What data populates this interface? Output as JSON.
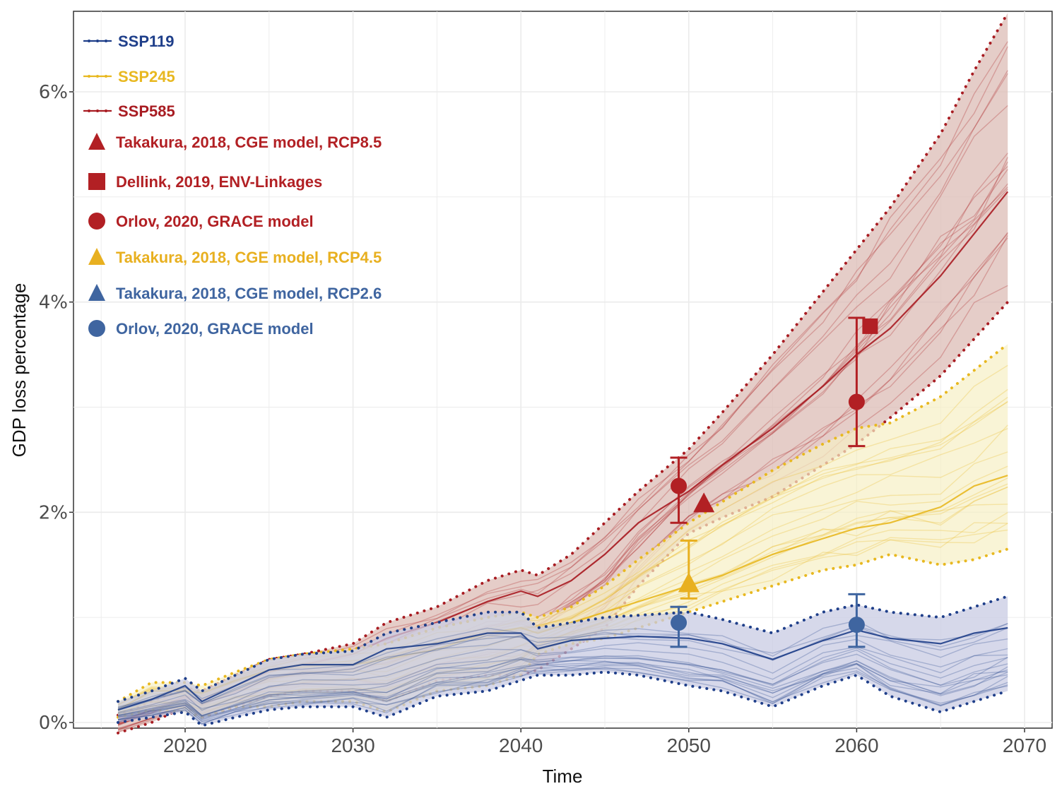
{
  "chart_data": {
    "type": "line",
    "title": "",
    "xlabel": "Time",
    "ylabel": "GDP  loss  percentage",
    "xlim": [
      2013,
      2071
    ],
    "ylim": [
      -0.05,
      6.8
    ],
    "grid": true,
    "legend_position": "top-left",
    "x_ticks": [
      2020,
      2030,
      2040,
      2050,
      2060,
      2070
    ],
    "x_tick_labels": [
      "2020",
      "2030",
      "2040",
      "2050",
      "2060",
      "2070"
    ],
    "y_ticks": [
      0,
      2,
      4,
      6
    ],
    "y_tick_labels": [
      "0%",
      "2%",
      "4%",
      "6%"
    ],
    "colors": {
      "ssp119": "#1f3f8a",
      "ssp245": "#e8b820",
      "ssp585": "#a81c22",
      "ssp119_fill": "#c8cbe3",
      "ssp245_fill": "#f7efc5",
      "ssp585_fill": "#dcbcb6",
      "orlov_blue": "#3f65a0",
      "takakura_blue": "#3f65a0",
      "takakura_yellow": "#e8b020",
      "red_marker": "#b22024"
    },
    "x": [
      2016,
      2018,
      2020,
      2021,
      2023,
      2025,
      2027,
      2030,
      2032,
      2035,
      2038,
      2040,
      2041,
      2043,
      2045,
      2047,
      2050,
      2052,
      2055,
      2058,
      2060,
      2062,
      2065,
      2067,
      2069
    ],
    "series": [
      {
        "name": "SSP119",
        "color_key": "ssp119",
        "median": [
          0.12,
          0.22,
          0.35,
          0.2,
          0.35,
          0.5,
          0.55,
          0.55,
          0.7,
          0.75,
          0.85,
          0.85,
          0.7,
          0.78,
          0.8,
          0.82,
          0.8,
          0.75,
          0.6,
          0.78,
          0.88,
          0.8,
          0.75,
          0.85,
          0.9
        ],
        "upper": [
          0.2,
          0.3,
          0.42,
          0.3,
          0.45,
          0.6,
          0.65,
          0.68,
          0.85,
          0.95,
          1.05,
          1.05,
          0.9,
          0.95,
          1.0,
          1.02,
          1.05,
          0.98,
          0.85,
          1.05,
          1.12,
          1.05,
          1.0,
          1.1,
          1.2
        ],
        "lower": [
          0.0,
          0.05,
          0.1,
          -0.03,
          0.05,
          0.12,
          0.15,
          0.15,
          0.05,
          0.25,
          0.3,
          0.4,
          0.45,
          0.45,
          0.48,
          0.45,
          0.35,
          0.3,
          0.15,
          0.35,
          0.45,
          0.25,
          0.1,
          0.2,
          0.3
        ]
      },
      {
        "name": "SSP245",
        "color_key": "ssp245",
        "median": [
          0.12,
          0.3,
          0.3,
          0.28,
          0.4,
          0.5,
          0.55,
          0.55,
          0.6,
          0.7,
          0.85,
          0.9,
          0.85,
          0.95,
          1.05,
          1.15,
          1.3,
          1.4,
          1.6,
          1.75,
          1.85,
          1.9,
          2.05,
          2.25,
          2.35
        ],
        "upper": [
          0.2,
          0.38,
          0.38,
          0.35,
          0.48,
          0.6,
          0.65,
          0.7,
          0.75,
          0.9,
          1.0,
          1.05,
          1.0,
          1.1,
          1.3,
          1.55,
          1.9,
          2.1,
          2.4,
          2.65,
          2.8,
          2.85,
          3.1,
          3.35,
          3.6
        ],
        "lower": [
          0.05,
          0.12,
          0.1,
          0.05,
          0.15,
          0.15,
          0.2,
          0.2,
          0.1,
          0.3,
          0.35,
          0.45,
          0.65,
          0.75,
          0.8,
          0.9,
          1.05,
          1.15,
          1.3,
          1.45,
          1.5,
          1.6,
          1.5,
          1.55,
          1.65
        ]
      },
      {
        "name": "SSP585",
        "color_key": "ssp585",
        "median": [
          0.0,
          0.12,
          0.25,
          0.22,
          0.35,
          0.48,
          0.55,
          0.65,
          0.8,
          0.95,
          1.15,
          1.25,
          1.2,
          1.35,
          1.6,
          1.9,
          2.2,
          2.45,
          2.8,
          3.2,
          3.5,
          3.75,
          4.25,
          4.65,
          5.05
        ],
        "upper": [
          0.07,
          0.2,
          0.33,
          0.3,
          0.45,
          0.6,
          0.65,
          0.75,
          0.95,
          1.1,
          1.35,
          1.45,
          1.4,
          1.6,
          1.9,
          2.2,
          2.6,
          2.95,
          3.5,
          4.1,
          4.5,
          4.9,
          5.6,
          6.2,
          6.75
        ],
        "lower": [
          -0.1,
          0.0,
          0.15,
          0.05,
          0.15,
          0.25,
          0.3,
          0.3,
          0.2,
          0.4,
          0.45,
          0.45,
          0.5,
          0.7,
          0.9,
          1.3,
          1.8,
          1.95,
          2.15,
          2.45,
          2.65,
          2.9,
          3.3,
          3.65,
          4.0
        ]
      }
    ],
    "points": [
      {
        "label": "Orlov, 2020, GRACE model (SSP585)",
        "marker": "circle",
        "color_key": "red_marker",
        "x": 2049.4,
        "y": 2.25,
        "err_low": 1.9,
        "err_high": 2.52
      },
      {
        "label": "Takakura, 2018, CGE model, RCP8.5",
        "marker": "triangle",
        "color_key": "red_marker",
        "x": 2050.9,
        "y": 2.08
      },
      {
        "label": "Takakura, 2018, CGE model, RCP4.5",
        "marker": "triangle",
        "color_key": "takakura_yellow",
        "x": 2050.0,
        "y": 1.32,
        "err_low": 1.18,
        "err_high": 1.73
      },
      {
        "label": "Orlov, 2020, GRACE model (SSP119)",
        "marker": "circle",
        "color_key": "orlov_blue",
        "x": 2049.4,
        "y": 0.95,
        "err_low": 0.72,
        "err_high": 1.1
      },
      {
        "label": "Orlov, 2020, GRACE model (SSP585)",
        "marker": "circle",
        "color_key": "red_marker",
        "x": 2060.0,
        "y": 3.05,
        "err_low": 2.63,
        "err_high": 3.85
      },
      {
        "label": "Dellink, 2019, ENV-Linkages",
        "marker": "square",
        "color_key": "red_marker",
        "x": 2060.8,
        "y": 3.77
      },
      {
        "label": "Orlov, 2020, GRACE model (SSP119)",
        "marker": "circle",
        "color_key": "orlov_blue",
        "x": 2060.0,
        "y": 0.93,
        "err_low": 0.72,
        "err_high": 1.22
      }
    ],
    "legend": [
      {
        "label": "SSP119",
        "kind": "line",
        "color_key": "ssp119"
      },
      {
        "label": "SSP245",
        "kind": "line",
        "color_key": "ssp245"
      },
      {
        "label": "SSP585",
        "kind": "line",
        "color_key": "ssp585"
      },
      {
        "label": "Takakura, 2018, CGE model, RCP8.5",
        "kind": "triangle",
        "color_key": "red_marker"
      },
      {
        "label": "Dellink, 2019, ENV-Linkages",
        "kind": "square",
        "color_key": "red_marker"
      },
      {
        "label": "Orlov, 2020, GRACE model",
        "kind": "circle",
        "color_key": "red_marker"
      },
      {
        "label": "Takakura, 2018, CGE model, RCP4.5",
        "kind": "triangle",
        "color_key": "takakura_yellow"
      },
      {
        "label": "Takakura, 2018, CGE model, RCP2.6",
        "kind": "triangle",
        "color_key": "takakura_blue"
      },
      {
        "label": "Orlov, 2020, GRACE model",
        "kind": "circle",
        "color_key": "orlov_blue"
      }
    ]
  }
}
